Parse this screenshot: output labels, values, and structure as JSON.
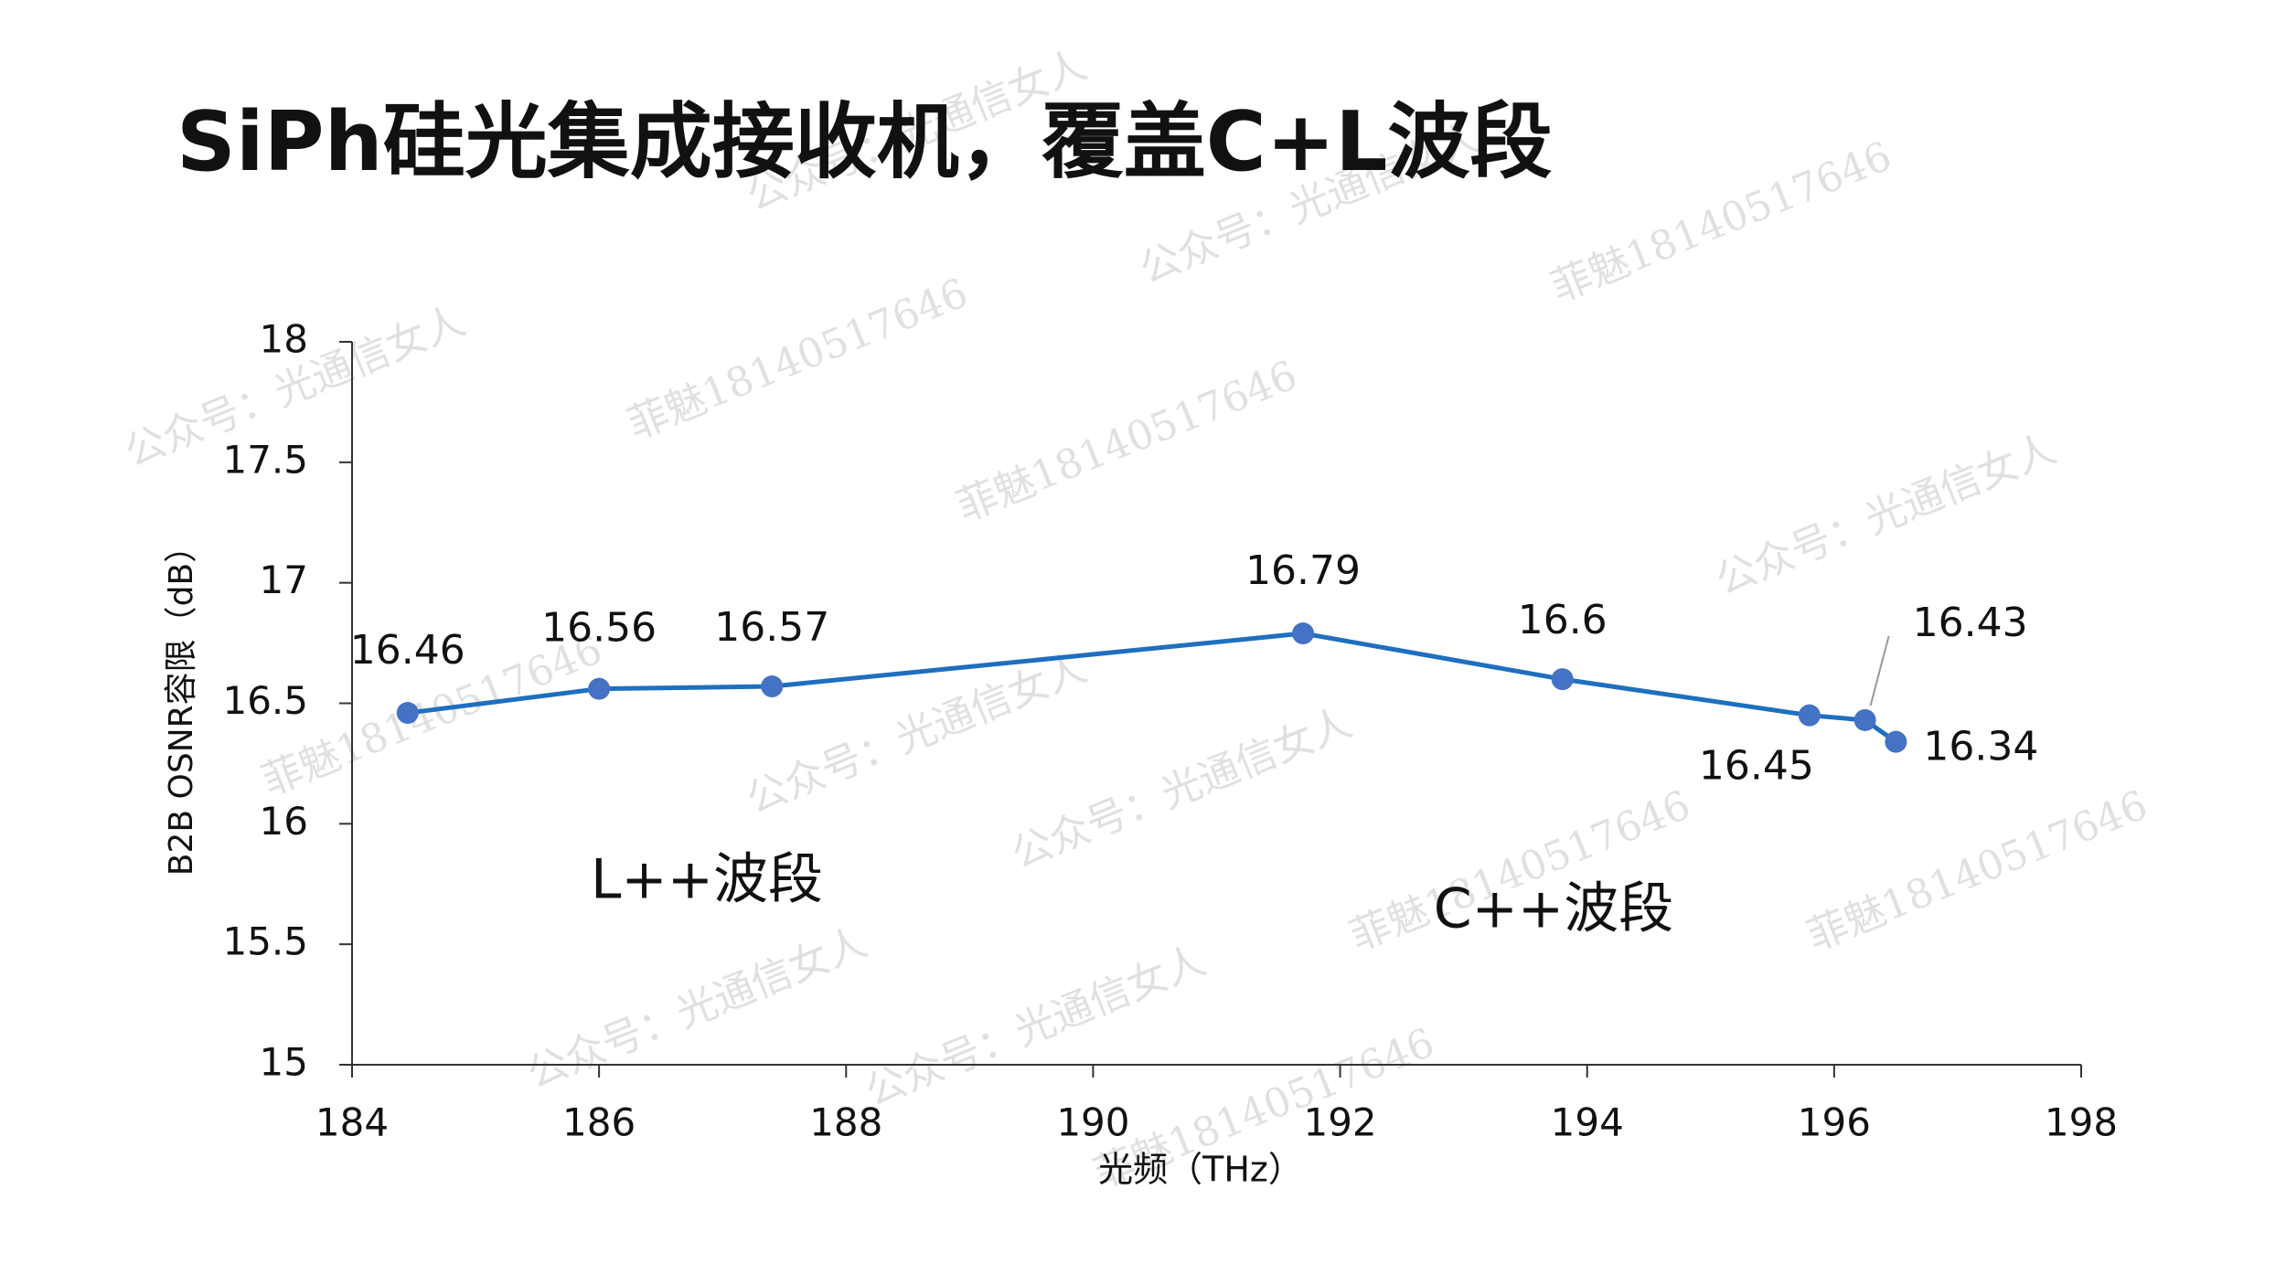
{
  "chart_data": {
    "type": "line",
    "title": "SiPh硅光集成接收机，覆盖C+L波段",
    "x_label": "光频（THz）",
    "y_label": "B2B OSNR容限（dB）",
    "annotations": [
      "L++波段",
      "C++波段"
    ],
    "watermarks": [
      "公众号：光通信女人",
      "菲魅18140517646"
    ],
    "x": [
      184.45,
      186,
      187.4,
      191.7,
      193.8,
      195.8,
      196.25,
      196.5
    ],
    "series": [
      {
        "name": "B2B OSNR容限",
        "color": "#1e6fbf",
        "marker_color": "#4472c4",
        "values": [
          16.46,
          16.56,
          16.57,
          16.79,
          16.6,
          16.45,
          16.43,
          16.34
        ]
      }
    ],
    "xlim": [
      184,
      198
    ],
    "xticks": [
      184,
      186,
      188,
      190,
      192,
      194,
      196,
      198
    ],
    "ylim": [
      15,
      18
    ],
    "yticks": [
      15,
      15.5,
      16,
      16.5,
      17,
      17.5,
      18
    ]
  }
}
